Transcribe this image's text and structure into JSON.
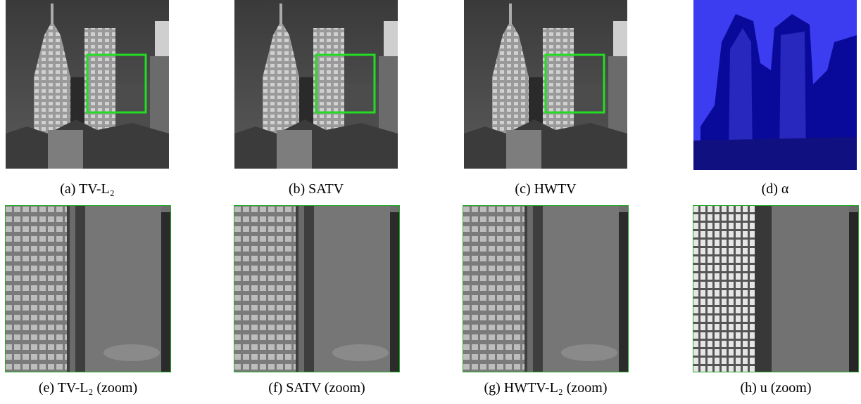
{
  "figure": {
    "panels": [
      {
        "caption": "(a) TV-L₂"
      },
      {
        "caption": "(b) SATV"
      },
      {
        "caption": "(c) HWTV"
      },
      {
        "caption": "(d) α"
      },
      {
        "caption": "(e) TV-L₂ (zoom)"
      },
      {
        "caption": "(f) SATV (zoom)"
      },
      {
        "caption": "(g) HWTV-L₂ (zoom)"
      },
      {
        "caption": "(h) u (zoom)"
      }
    ]
  }
}
